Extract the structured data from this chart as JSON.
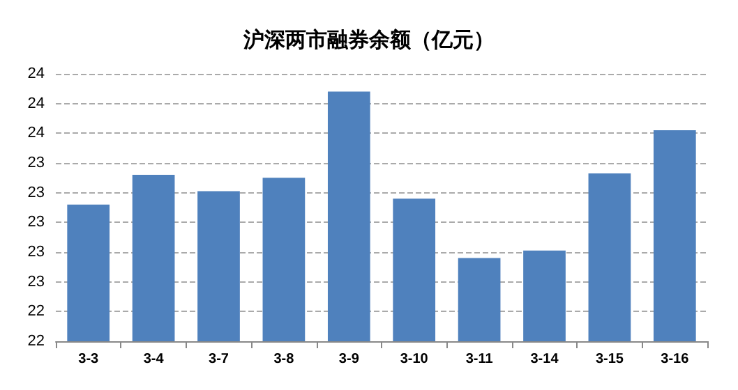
{
  "chart_data": {
    "type": "bar",
    "title": "沪深两市融券余额（亿元）",
    "categories": [
      "3-3",
      "3-4",
      "3-7",
      "3-8",
      "3-9",
      "3-10",
      "3-11",
      "3-14",
      "3-15",
      "3-16"
    ],
    "values": [
      23.12,
      23.32,
      23.21,
      23.3,
      23.88,
      23.16,
      22.76,
      22.81,
      23.33,
      23.62
    ],
    "color": "#4f81bd",
    "ylim": [
      22.2,
      24.0
    ],
    "yticks": [
      {
        "value": 22.2,
        "label": "22"
      },
      {
        "value": 22.4,
        "label": "22"
      },
      {
        "value": 22.6,
        "label": "23"
      },
      {
        "value": 22.8,
        "label": "23"
      },
      {
        "value": 23.0,
        "label": "23"
      },
      {
        "value": 23.2,
        "label": "23"
      },
      {
        "value": 23.4,
        "label": "23"
      },
      {
        "value": 23.6,
        "label": "24"
      },
      {
        "value": 23.8,
        "label": "24"
      },
      {
        "value": 24.0,
        "label": "24"
      }
    ],
    "grid": "y"
  }
}
